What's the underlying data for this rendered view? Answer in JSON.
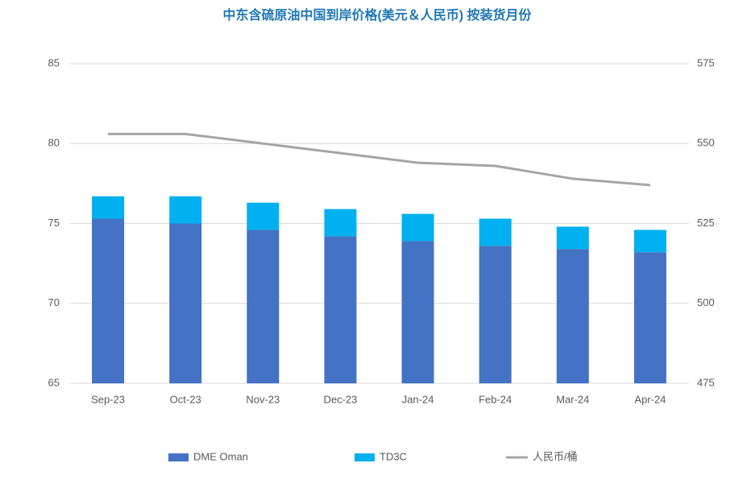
{
  "chart_data": {
    "type": "bar",
    "title": "中东含硫原油中国到岸价格(美元＆人民币) 按装货月份",
    "categories": [
      "Sep-23",
      "Oct-23",
      "Nov-23",
      "Dec-23",
      "Jan-24",
      "Feb-24",
      "Mar-24",
      "Apr-24"
    ],
    "stacked": true,
    "series": [
      {
        "name": "DME Oman",
        "type": "bar",
        "color": "#4472c4",
        "values": [
          75.3,
          75.0,
          74.6,
          74.2,
          73.9,
          73.6,
          73.4,
          73.2
        ]
      },
      {
        "name": "TD3C",
        "type": "bar",
        "color": "#00b0f0",
        "values": [
          1.4,
          1.7,
          1.7,
          1.7,
          1.7,
          1.7,
          1.4,
          1.4
        ]
      },
      {
        "name": "人民币/桶",
        "type": "line",
        "axis": "y2",
        "color": "#a5a5a5",
        "values": [
          553,
          553,
          550,
          547,
          544,
          543,
          539,
          537
        ]
      }
    ],
    "ylim": [
      65,
      85
    ],
    "yticks": [
      65,
      70,
      75,
      80,
      85
    ],
    "y2lim": [
      475,
      575
    ],
    "y2ticks": [
      475,
      500,
      525,
      550,
      575
    ],
    "grid": true,
    "legend": "bottom"
  }
}
